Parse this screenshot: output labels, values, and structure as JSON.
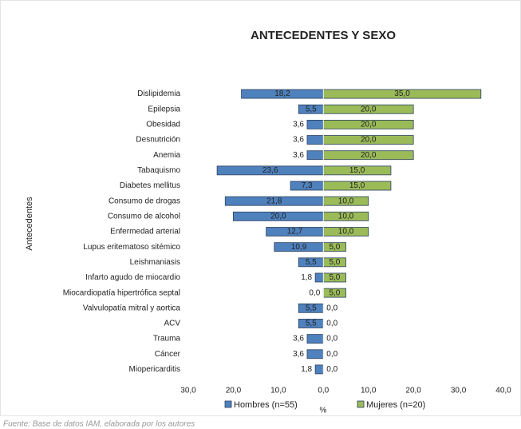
{
  "chart_data": {
    "type": "butterfly-bar",
    "title": "ANTECEDENTES Y SEXO",
    "y_label": "Antecedentes",
    "x_label": "%",
    "source": "Fuente: Base de datos IAM, elaborada por los autores",
    "categories": [
      "Dislipidemia",
      "Epilepsia",
      "Obesidad",
      "Desnutrición",
      "Anemia",
      "Tabaquismo",
      "Diabetes mellitus",
      "Consumo de drogas",
      "Consumo de alcohol",
      "Enfermedad arterial",
      "Lupus eritematoso sitémico",
      "Leishmaniasis",
      "Infarto agudo de miocardio",
      "Miocardiopatía hipertrófica septal",
      "Valvulopatía mitral y aortica",
      "ACV",
      "Trauma",
      "Cáncer",
      "Miopericarditis"
    ],
    "series": [
      {
        "name": "Hombres (n=55)",
        "color": "#4f81bd",
        "side": "left",
        "values": [
          18.2,
          5.5,
          3.6,
          3.6,
          3.6,
          23.6,
          7.3,
          21.8,
          20.0,
          12.7,
          10.9,
          5.5,
          1.8,
          0.0,
          5.5,
          5.5,
          3.6,
          3.6,
          1.8
        ],
        "value_labels": [
          "18,2",
          "5,5",
          "3,6",
          "3,6",
          "3,6",
          "23,6",
          "7,3",
          "21,8",
          "20,0",
          "12,7",
          "10,9",
          "5,5",
          "1,8",
          "0,0",
          "5,5",
          "5,5",
          "3,6",
          "3,6",
          "1,8"
        ]
      },
      {
        "name": "Mujeres (n=20)",
        "color": "#9bbb59",
        "side": "right",
        "values": [
          35.0,
          20.0,
          20.0,
          20.0,
          20.0,
          15.0,
          15.0,
          10.0,
          10.0,
          10.0,
          5.0,
          5.0,
          5.0,
          5.0,
          0.0,
          0.0,
          0.0,
          0.0,
          0.0
        ],
        "value_labels": [
          "35,0",
          "20,0",
          "20,0",
          "20,0",
          "20,0",
          "15,0",
          "15,0",
          "10,0",
          "10,0",
          "10,0",
          "5,0",
          "5,0",
          "5,0",
          "5,0",
          "0,0",
          "0,0",
          "0,0",
          "0,0",
          "0,0"
        ]
      }
    ],
    "xlim": [
      -30,
      40
    ],
    "xticks": [
      {
        "value": -30,
        "label": "30,0"
      },
      {
        "value": -20,
        "label": "20,0"
      },
      {
        "value": -10,
        "label": "10,0"
      },
      {
        "value": 0,
        "label": "0,0"
      },
      {
        "value": 10,
        "label": "10,0"
      },
      {
        "value": 20,
        "label": "20,0"
      },
      {
        "value": 30,
        "label": "30,0"
      },
      {
        "value": 40,
        "label": "40,0"
      }
    ],
    "legend": "bottom"
  }
}
